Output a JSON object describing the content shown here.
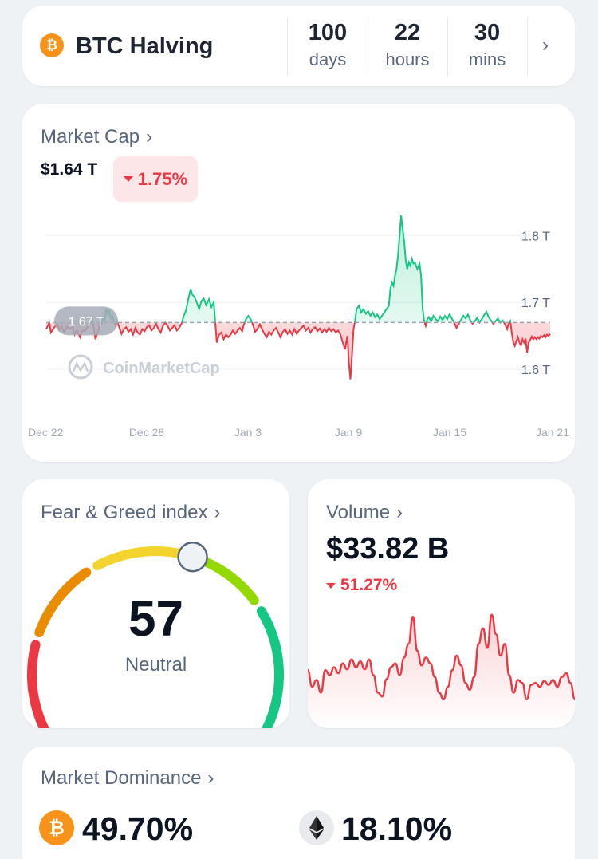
{
  "halving": {
    "title": "BTC Halving",
    "coin_icon": "bitcoin-icon",
    "countdown": [
      {
        "value": "100",
        "unit": "days"
      },
      {
        "value": "22",
        "unit": "hours"
      },
      {
        "value": "30",
        "unit": "mins"
      }
    ]
  },
  "market_cap": {
    "title": "Market Cap",
    "value": "$1.64 T",
    "change": "1.75%",
    "change_direction": "down",
    "reference_label": "1.67 T",
    "watermark": "CoinMarketCap"
  },
  "fear_greed": {
    "title": "Fear & Greed index",
    "value": "57",
    "label": "Neutral",
    "score": 57,
    "scale": [
      0,
      100
    ]
  },
  "volume": {
    "title": "Volume",
    "value": "$33.82 B",
    "change": "51.27%",
    "change_direction": "down"
  },
  "dominance": {
    "title": "Market Dominance",
    "btc": "49.70%",
    "eth": "18.10%"
  },
  "colors": {
    "up": "#16c784",
    "down": "#ea3943",
    "muted": "#58667e",
    "bitcoin": "#f7931a"
  },
  "chart_data": [
    {
      "type": "area",
      "series_name": "Market Cap",
      "unit": "T",
      "x_ticks": [
        "Dec 22",
        "Dec 28",
        "Jan 3",
        "Jan 9",
        "Jan 15",
        "Jan 21"
      ],
      "y_ticks": [
        "1.8 T",
        "1.7 T",
        "1.6 T"
      ],
      "ylim": [
        1.55,
        1.86
      ],
      "baseline": 1.67,
      "points": [
        [
          0,
          1.66
        ],
        [
          4,
          1.67
        ],
        [
          6,
          1.655
        ],
        [
          10,
          1.662
        ],
        [
          14,
          1.668
        ],
        [
          17,
          1.659
        ],
        [
          20,
          1.664
        ],
        [
          23,
          1.655
        ],
        [
          27,
          1.664
        ],
        [
          31,
          1.66
        ],
        [
          34,
          1.664
        ],
        [
          37,
          1.652
        ],
        [
          40,
          1.659
        ],
        [
          44,
          1.648
        ],
        [
          47,
          1.658
        ],
        [
          50,
          1.657
        ],
        [
          53,
          1.662
        ],
        [
          56,
          1.667
        ],
        [
          60,
          1.675
        ],
        [
          62,
          1.66
        ],
        [
          64,
          1.645
        ],
        [
          66,
          1.652
        ],
        [
          68,
          1.658
        ],
        [
          70,
          1.672
        ],
        [
          72,
          1.668
        ],
        [
          74,
          1.678
        ],
        [
          76,
          1.673
        ],
        [
          78,
          1.69
        ],
        [
          80,
          1.682
        ],
        [
          82,
          1.688
        ],
        [
          84,
          1.676
        ],
        [
          86,
          1.68
        ],
        [
          88,
          1.673
        ],
        [
          90,
          1.666
        ],
        [
          92,
          1.672
        ],
        [
          95,
          1.663
        ],
        [
          98,
          1.653
        ],
        [
          101,
          1.66
        ],
        [
          104,
          1.663
        ],
        [
          107,
          1.656
        ],
        [
          110,
          1.66
        ],
        [
          113,
          1.652
        ],
        [
          116,
          1.662
        ],
        [
          119,
          1.655
        ],
        [
          122,
          1.652
        ],
        [
          125,
          1.66
        ],
        [
          128,
          1.657
        ],
        [
          131,
          1.663
        ],
        [
          134,
          1.666
        ],
        [
          137,
          1.658
        ],
        [
          140,
          1.662
        ],
        [
          143,
          1.668
        ],
        [
          146,
          1.66
        ],
        [
          149,
          1.655
        ],
        [
          152,
          1.665
        ],
        [
          155,
          1.67
        ],
        [
          158,
          1.665
        ],
        [
          161,
          1.658
        ],
        [
          164,
          1.662
        ],
        [
          167,
          1.666
        ],
        [
          170,
          1.658
        ],
        [
          173,
          1.662
        ],
        [
          176,
          1.668
        ],
        [
          179,
          1.68
        ],
        [
          182,
          1.688
        ],
        [
          185,
          1.705
        ],
        [
          188,
          1.72
        ],
        [
          190,
          1.712
        ],
        [
          193,
          1.708
        ],
        [
          196,
          1.7
        ],
        [
          199,
          1.69
        ],
        [
          202,
          1.702
        ],
        [
          205,
          1.706
        ],
        [
          208,
          1.696
        ],
        [
          210,
          1.7
        ],
        [
          212,
          1.705
        ],
        [
          215,
          1.693
        ],
        [
          218,
          1.7
        ],
        [
          220,
          1.67
        ],
        [
          222,
          1.64
        ],
        [
          225,
          1.652
        ],
        [
          228,
          1.655
        ],
        [
          231,
          1.645
        ],
        [
          234,
          1.652
        ],
        [
          237,
          1.648
        ],
        [
          240,
          1.652
        ],
        [
          243,
          1.658
        ],
        [
          246,
          1.653
        ],
        [
          249,
          1.658
        ],
        [
          252,
          1.662
        ],
        [
          255,
          1.657
        ],
        [
          257,
          1.666
        ],
        [
          260,
          1.675
        ],
        [
          263,
          1.68
        ],
        [
          266,
          1.675
        ],
        [
          269,
          1.667
        ],
        [
          272,
          1.656
        ],
        [
          275,
          1.66
        ],
        [
          278,
          1.667
        ],
        [
          281,
          1.66
        ],
        [
          284,
          1.653
        ],
        [
          287,
          1.648
        ],
        [
          290,
          1.656
        ],
        [
          293,
          1.652
        ],
        [
          296,
          1.658
        ],
        [
          299,
          1.662
        ],
        [
          302,
          1.655
        ],
        [
          305,
          1.648
        ],
        [
          308,
          1.656
        ],
        [
          311,
          1.66
        ],
        [
          314,
          1.653
        ],
        [
          317,
          1.658
        ],
        [
          320,
          1.652
        ],
        [
          323,
          1.66
        ],
        [
          326,
          1.653
        ],
        [
          329,
          1.658
        ],
        [
          332,
          1.662
        ],
        [
          335,
          1.665
        ],
        [
          338,
          1.658
        ],
        [
          341,
          1.662
        ],
        [
          344,
          1.655
        ],
        [
          347,
          1.66
        ],
        [
          350,
          1.663
        ],
        [
          353,
          1.657
        ],
        [
          356,
          1.661
        ],
        [
          359,
          1.655
        ],
        [
          362,
          1.66
        ],
        [
          365,
          1.656
        ],
        [
          368,
          1.662
        ],
        [
          371,
          1.657
        ],
        [
          374,
          1.66
        ],
        [
          377,
          1.655
        ],
        [
          380,
          1.658
        ],
        [
          383,
          1.652
        ],
        [
          386,
          1.64
        ],
        [
          389,
          1.63
        ],
        [
          392,
          1.65
        ],
        [
          394,
          1.61
        ],
        [
          396,
          1.585
        ],
        [
          398,
          1.62
        ],
        [
          400,
          1.66
        ],
        [
          402,
          1.672
        ],
        [
          404,
          1.69
        ],
        [
          407,
          1.695
        ],
        [
          410,
          1.685
        ],
        [
          413,
          1.69
        ],
        [
          416,
          1.683
        ],
        [
          419,
          1.687
        ],
        [
          422,
          1.68
        ],
        [
          425,
          1.685
        ],
        [
          428,
          1.678
        ],
        [
          431,
          1.682
        ],
        [
          434,
          1.675
        ],
        [
          437,
          1.68
        ],
        [
          440,
          1.685
        ],
        [
          443,
          1.69
        ],
        [
          446,
          1.695
        ],
        [
          448,
          1.72
        ],
        [
          450,
          1.73
        ],
        [
          452,
          1.725
        ],
        [
          454,
          1.74
        ],
        [
          456,
          1.75
        ],
        [
          458,
          1.77
        ],
        [
          460,
          1.8
        ],
        [
          462,
          1.83
        ],
        [
          464,
          1.81
        ],
        [
          466,
          1.79
        ],
        [
          468,
          1.762
        ],
        [
          470,
          1.75
        ],
        [
          472,
          1.76
        ],
        [
          474,
          1.755
        ],
        [
          476,
          1.765
        ],
        [
          478,
          1.758
        ],
        [
          480,
          1.76
        ],
        [
          483,
          1.75
        ],
        [
          486,
          1.758
        ],
        [
          488,
          1.74
        ],
        [
          490,
          1.69
        ],
        [
          492,
          1.672
        ],
        [
          494,
          1.665
        ],
        [
          496,
          1.675
        ],
        [
          498,
          1.678
        ],
        [
          501,
          1.672
        ],
        [
          504,
          1.68
        ],
        [
          507,
          1.675
        ],
        [
          510,
          1.672
        ],
        [
          513,
          1.679
        ],
        [
          516,
          1.674
        ],
        [
          519,
          1.68
        ],
        [
          522,
          1.675
        ],
        [
          525,
          1.682
        ],
        [
          528,
          1.676
        ],
        [
          531,
          1.67
        ],
        [
          534,
          1.662
        ],
        [
          537,
          1.668
        ],
        [
          540,
          1.674
        ],
        [
          543,
          1.68
        ],
        [
          546,
          1.676
        ],
        [
          549,
          1.682
        ],
        [
          552,
          1.673
        ],
        [
          555,
          1.668
        ],
        [
          558,
          1.672
        ],
        [
          561,
          1.677
        ],
        [
          564,
          1.67
        ],
        [
          567,
          1.675
        ],
        [
          570,
          1.681
        ],
        [
          573,
          1.686
        ],
        [
          576,
          1.678
        ],
        [
          579,
          1.673
        ],
        [
          582,
          1.668
        ],
        [
          585,
          1.672
        ],
        [
          588,
          1.676
        ],
        [
          591,
          1.67
        ],
        [
          594,
          1.673
        ],
        [
          597,
          1.668
        ],
        [
          600,
          1.66
        ],
        [
          602,
          1.668
        ],
        [
          604,
          1.672
        ],
        [
          606,
          1.655
        ],
        [
          608,
          1.64
        ],
        [
          610,
          1.635
        ],
        [
          612,
          1.642
        ],
        [
          614,
          1.648
        ],
        [
          616,
          1.64
        ],
        [
          618,
          1.636
        ],
        [
          620,
          1.645
        ],
        [
          622,
          1.64
        ],
        [
          624,
          1.646
        ],
        [
          626,
          1.625
        ],
        [
          628,
          1.64
        ],
        [
          630,
          1.644
        ],
        [
          632,
          1.649
        ],
        [
          634,
          1.645
        ],
        [
          636,
          1.648
        ],
        [
          638,
          1.645
        ],
        [
          640,
          1.648
        ],
        [
          642,
          1.646
        ],
        [
          644,
          1.65
        ],
        [
          646,
          1.648
        ],
        [
          648,
          1.651
        ],
        [
          650,
          1.648
        ],
        [
          652,
          1.652
        ],
        [
          654,
          1.65
        ],
        [
          656,
          1.653
        ]
      ]
    },
    {
      "type": "area",
      "series_name": "Volume",
      "values": [
        0.35,
        0.18,
        0.25,
        0.12,
        0.35,
        0.3,
        0.38,
        0.32,
        0.42,
        0.36,
        0.46,
        0.38,
        0.44,
        0.36,
        0.46,
        0.3,
        0.12,
        0.08,
        0.26,
        0.38,
        0.42,
        0.3,
        0.48,
        0.62,
        0.9,
        0.55,
        0.4,
        0.48,
        0.42,
        0.28,
        0.12,
        0.05,
        0.18,
        0.35,
        0.5,
        0.4,
        0.22,
        0.15,
        0.28,
        0.62,
        0.78,
        0.58,
        0.92,
        0.72,
        0.5,
        0.62,
        0.3,
        0.12,
        0.25,
        0.22,
        0.05,
        0.2,
        0.22,
        0.18,
        0.24,
        0.2,
        0.25,
        0.18,
        0.28,
        0.32,
        0.22,
        0.05
      ]
    }
  ]
}
